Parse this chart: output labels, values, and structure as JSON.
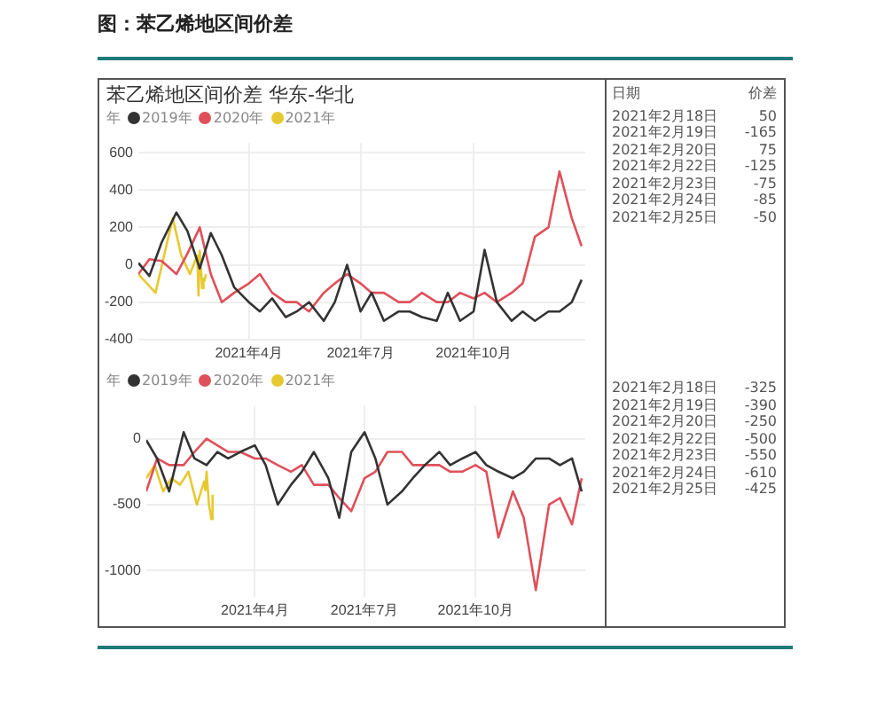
{
  "chart_data": [
    {
      "type": "line",
      "title": "苯乙烯地区间价差 华东-华北",
      "annotations": [
        "图：苯乙烯地区间价差"
      ],
      "legend_title": "年",
      "legend": "top left",
      "grid": true,
      "marker": "none",
      "line_style": "solid",
      "xlim": [
        "2021-01-01",
        "2021-12-31"
      ],
      "xticks": [
        {
          "value": "2021-04-01",
          "label": "2021年4月"
        },
        {
          "value": "2021-07-01",
          "label": "2021年7月"
        },
        {
          "value": "2021-10-01",
          "label": "2021年10月"
        }
      ],
      "ylim": [
        -400,
        650
      ],
      "yticks": [
        -400,
        -200,
        0,
        200,
        400,
        600
      ],
      "series": [
        {
          "name": "2019年",
          "color": "#333333",
          "x": [
            "2021-01-01",
            "2021-01-10",
            "2021-01-20",
            "2021-02-01",
            "2021-02-10",
            "2021-02-20",
            "2021-03-01",
            "2021-03-10",
            "2021-03-20",
            "2021-04-01",
            "2021-04-10",
            "2021-04-20",
            "2021-05-01",
            "2021-05-10",
            "2021-05-20",
            "2021-06-01",
            "2021-06-10",
            "2021-06-20",
            "2021-07-01",
            "2021-07-10",
            "2021-07-20",
            "2021-08-01",
            "2021-08-10",
            "2021-08-20",
            "2021-09-01",
            "2021-09-10",
            "2021-09-20",
            "2021-10-01",
            "2021-10-10",
            "2021-10-20",
            "2021-11-01",
            "2021-11-10",
            "2021-11-20",
            "2021-12-01",
            "2021-12-10",
            "2021-12-20",
            "2021-12-28"
          ],
          "values": [
            10,
            -60,
            120,
            280,
            180,
            -20,
            170,
            50,
            -120,
            -200,
            -250,
            -180,
            -280,
            -250,
            -200,
            -300,
            -200,
            0,
            -250,
            -150,
            -300,
            -250,
            -250,
            -280,
            -300,
            -150,
            -300,
            -250,
            80,
            -200,
            -300,
            -250,
            -300,
            -250,
            -250,
            -200,
            -80
          ]
        },
        {
          "name": "2020年",
          "color": "#e0505a",
          "x": [
            "2021-01-01",
            "2021-01-10",
            "2021-01-20",
            "2021-02-01",
            "2021-02-10",
            "2021-02-20",
            "2021-03-01",
            "2021-03-10",
            "2021-03-20",
            "2021-04-01",
            "2021-04-10",
            "2021-04-20",
            "2021-05-01",
            "2021-05-10",
            "2021-05-20",
            "2021-06-01",
            "2021-06-10",
            "2021-06-20",
            "2021-07-01",
            "2021-07-10",
            "2021-07-20",
            "2021-08-01",
            "2021-08-10",
            "2021-08-20",
            "2021-09-01",
            "2021-09-10",
            "2021-09-20",
            "2021-10-01",
            "2021-10-10",
            "2021-10-20",
            "2021-11-01",
            "2021-11-10",
            "2021-11-20",
            "2021-12-01",
            "2021-12-10",
            "2021-12-20",
            "2021-12-28"
          ],
          "values": [
            -50,
            30,
            20,
            -50,
            60,
            200,
            -50,
            -200,
            -150,
            -100,
            -50,
            -150,
            -200,
            -200,
            -250,
            -150,
            -100,
            -50,
            -100,
            -150,
            -150,
            -200,
            -200,
            -150,
            -200,
            -200,
            -150,
            -180,
            -150,
            -200,
            -150,
            -100,
            150,
            200,
            500,
            250,
            100
          ]
        },
        {
          "name": "2021年",
          "color": "#e8c830",
          "x": [
            "2021-01-01",
            "2021-01-08",
            "2021-01-15",
            "2021-01-22",
            "2021-01-29",
            "2021-02-05",
            "2021-02-12",
            "2021-02-18",
            "2021-02-19",
            "2021-02-20",
            "2021-02-22",
            "2021-02-23",
            "2021-02-24",
            "2021-02-25"
          ],
          "values": [
            -50,
            -100,
            -150,
            50,
            250,
            50,
            -50,
            50,
            -165,
            75,
            -125,
            -75,
            -85,
            -50
          ]
        }
      ]
    },
    {
      "type": "other",
      "annotations": [
        "日期",
        "价差"
      ],
      "categories": [
        "2021年2月18日",
        "2021年2月19日",
        "2021年2月20日",
        "2021年2月22日",
        "2021年2月23日",
        "2021年2月24日",
        "2021年2月25日"
      ],
      "values": [
        50,
        -165,
        75,
        -125,
        -75,
        -85,
        -50
      ],
      "data_labels": true
    },
    {
      "type": "line",
      "legend_title": "年",
      "legend": "top left",
      "grid": true,
      "marker": "none",
      "line_style": "solid",
      "xlim": [
        "2021-01-01",
        "2021-12-31"
      ],
      "xticks": [
        {
          "value": "2021-04-01",
          "label": "2021年4月"
        },
        {
          "value": "2021-07-01",
          "label": "2021年7月"
        },
        {
          "value": "2021-10-01",
          "label": "2021年10月"
        }
      ],
      "ylim": [
        -1200,
        250
      ],
      "yticks": [
        -1000,
        -500,
        0
      ],
      "series": [
        {
          "name": "2019年",
          "color": "#333333",
          "x": [
            "2021-01-01",
            "2021-01-10",
            "2021-01-20",
            "2021-02-01",
            "2021-02-10",
            "2021-02-20",
            "2021-03-01",
            "2021-03-10",
            "2021-03-20",
            "2021-04-01",
            "2021-04-10",
            "2021-04-20",
            "2021-05-01",
            "2021-05-10",
            "2021-05-20",
            "2021-06-01",
            "2021-06-10",
            "2021-06-20",
            "2021-07-01",
            "2021-07-10",
            "2021-07-20",
            "2021-08-01",
            "2021-08-10",
            "2021-08-20",
            "2021-09-01",
            "2021-09-10",
            "2021-09-20",
            "2021-10-01",
            "2021-10-10",
            "2021-10-20",
            "2021-11-01",
            "2021-11-10",
            "2021-11-20",
            "2021-12-01",
            "2021-12-10",
            "2021-12-20",
            "2021-12-28"
          ],
          "values": [
            -10,
            -150,
            -400,
            50,
            -150,
            -200,
            -100,
            -150,
            -100,
            -50,
            -200,
            -500,
            -350,
            -250,
            -100,
            -300,
            -600,
            -100,
            50,
            -150,
            -500,
            -400,
            -300,
            -200,
            -100,
            -200,
            -150,
            -100,
            -200,
            -250,
            -300,
            -250,
            -150,
            -150,
            -200,
            -150,
            -400
          ]
        },
        {
          "name": "2020年",
          "color": "#e0505a",
          "x": [
            "2021-01-01",
            "2021-01-10",
            "2021-01-20",
            "2021-02-01",
            "2021-02-10",
            "2021-02-20",
            "2021-03-01",
            "2021-03-10",
            "2021-03-20",
            "2021-04-01",
            "2021-04-10",
            "2021-04-20",
            "2021-05-01",
            "2021-05-10",
            "2021-05-20",
            "2021-06-01",
            "2021-06-10",
            "2021-06-20",
            "2021-07-01",
            "2021-07-10",
            "2021-07-20",
            "2021-08-01",
            "2021-08-10",
            "2021-08-20",
            "2021-09-01",
            "2021-09-10",
            "2021-09-20",
            "2021-10-01",
            "2021-10-10",
            "2021-10-20",
            "2021-11-01",
            "2021-11-10",
            "2021-11-20",
            "2021-12-01",
            "2021-12-10",
            "2021-12-20",
            "2021-12-28"
          ],
          "values": [
            -400,
            -150,
            -200,
            -200,
            -100,
            0,
            -50,
            -100,
            -100,
            -150,
            -150,
            -200,
            -250,
            -200,
            -350,
            -350,
            -450,
            -550,
            -300,
            -250,
            -100,
            -100,
            -200,
            -200,
            -200,
            -250,
            -250,
            -200,
            -250,
            -750,
            -400,
            -600,
            -1150,
            -500,
            -450,
            -650,
            -300
          ]
        },
        {
          "name": "2021年",
          "color": "#e8c830",
          "x": [
            "2021-01-01",
            "2021-01-08",
            "2021-01-15",
            "2021-01-22",
            "2021-01-29",
            "2021-02-05",
            "2021-02-12",
            "2021-02-18",
            "2021-02-19",
            "2021-02-20",
            "2021-02-22",
            "2021-02-23",
            "2021-02-24",
            "2021-02-25"
          ],
          "values": [
            -300,
            -200,
            -400,
            -300,
            -350,
            -250,
            -500,
            -325,
            -390,
            -250,
            -500,
            -550,
            -610,
            -425
          ]
        }
      ]
    },
    {
      "type": "other",
      "categories": [
        "2021年2月18日",
        "2021年2月19日",
        "2021年2月20日",
        "2021年2月22日",
        "2021年2月23日",
        "2021年2月24日",
        "2021年2月25日"
      ],
      "values": [
        -325,
        -390,
        -250,
        -500,
        -550,
        -610,
        -425
      ],
      "data_labels": true
    }
  ]
}
